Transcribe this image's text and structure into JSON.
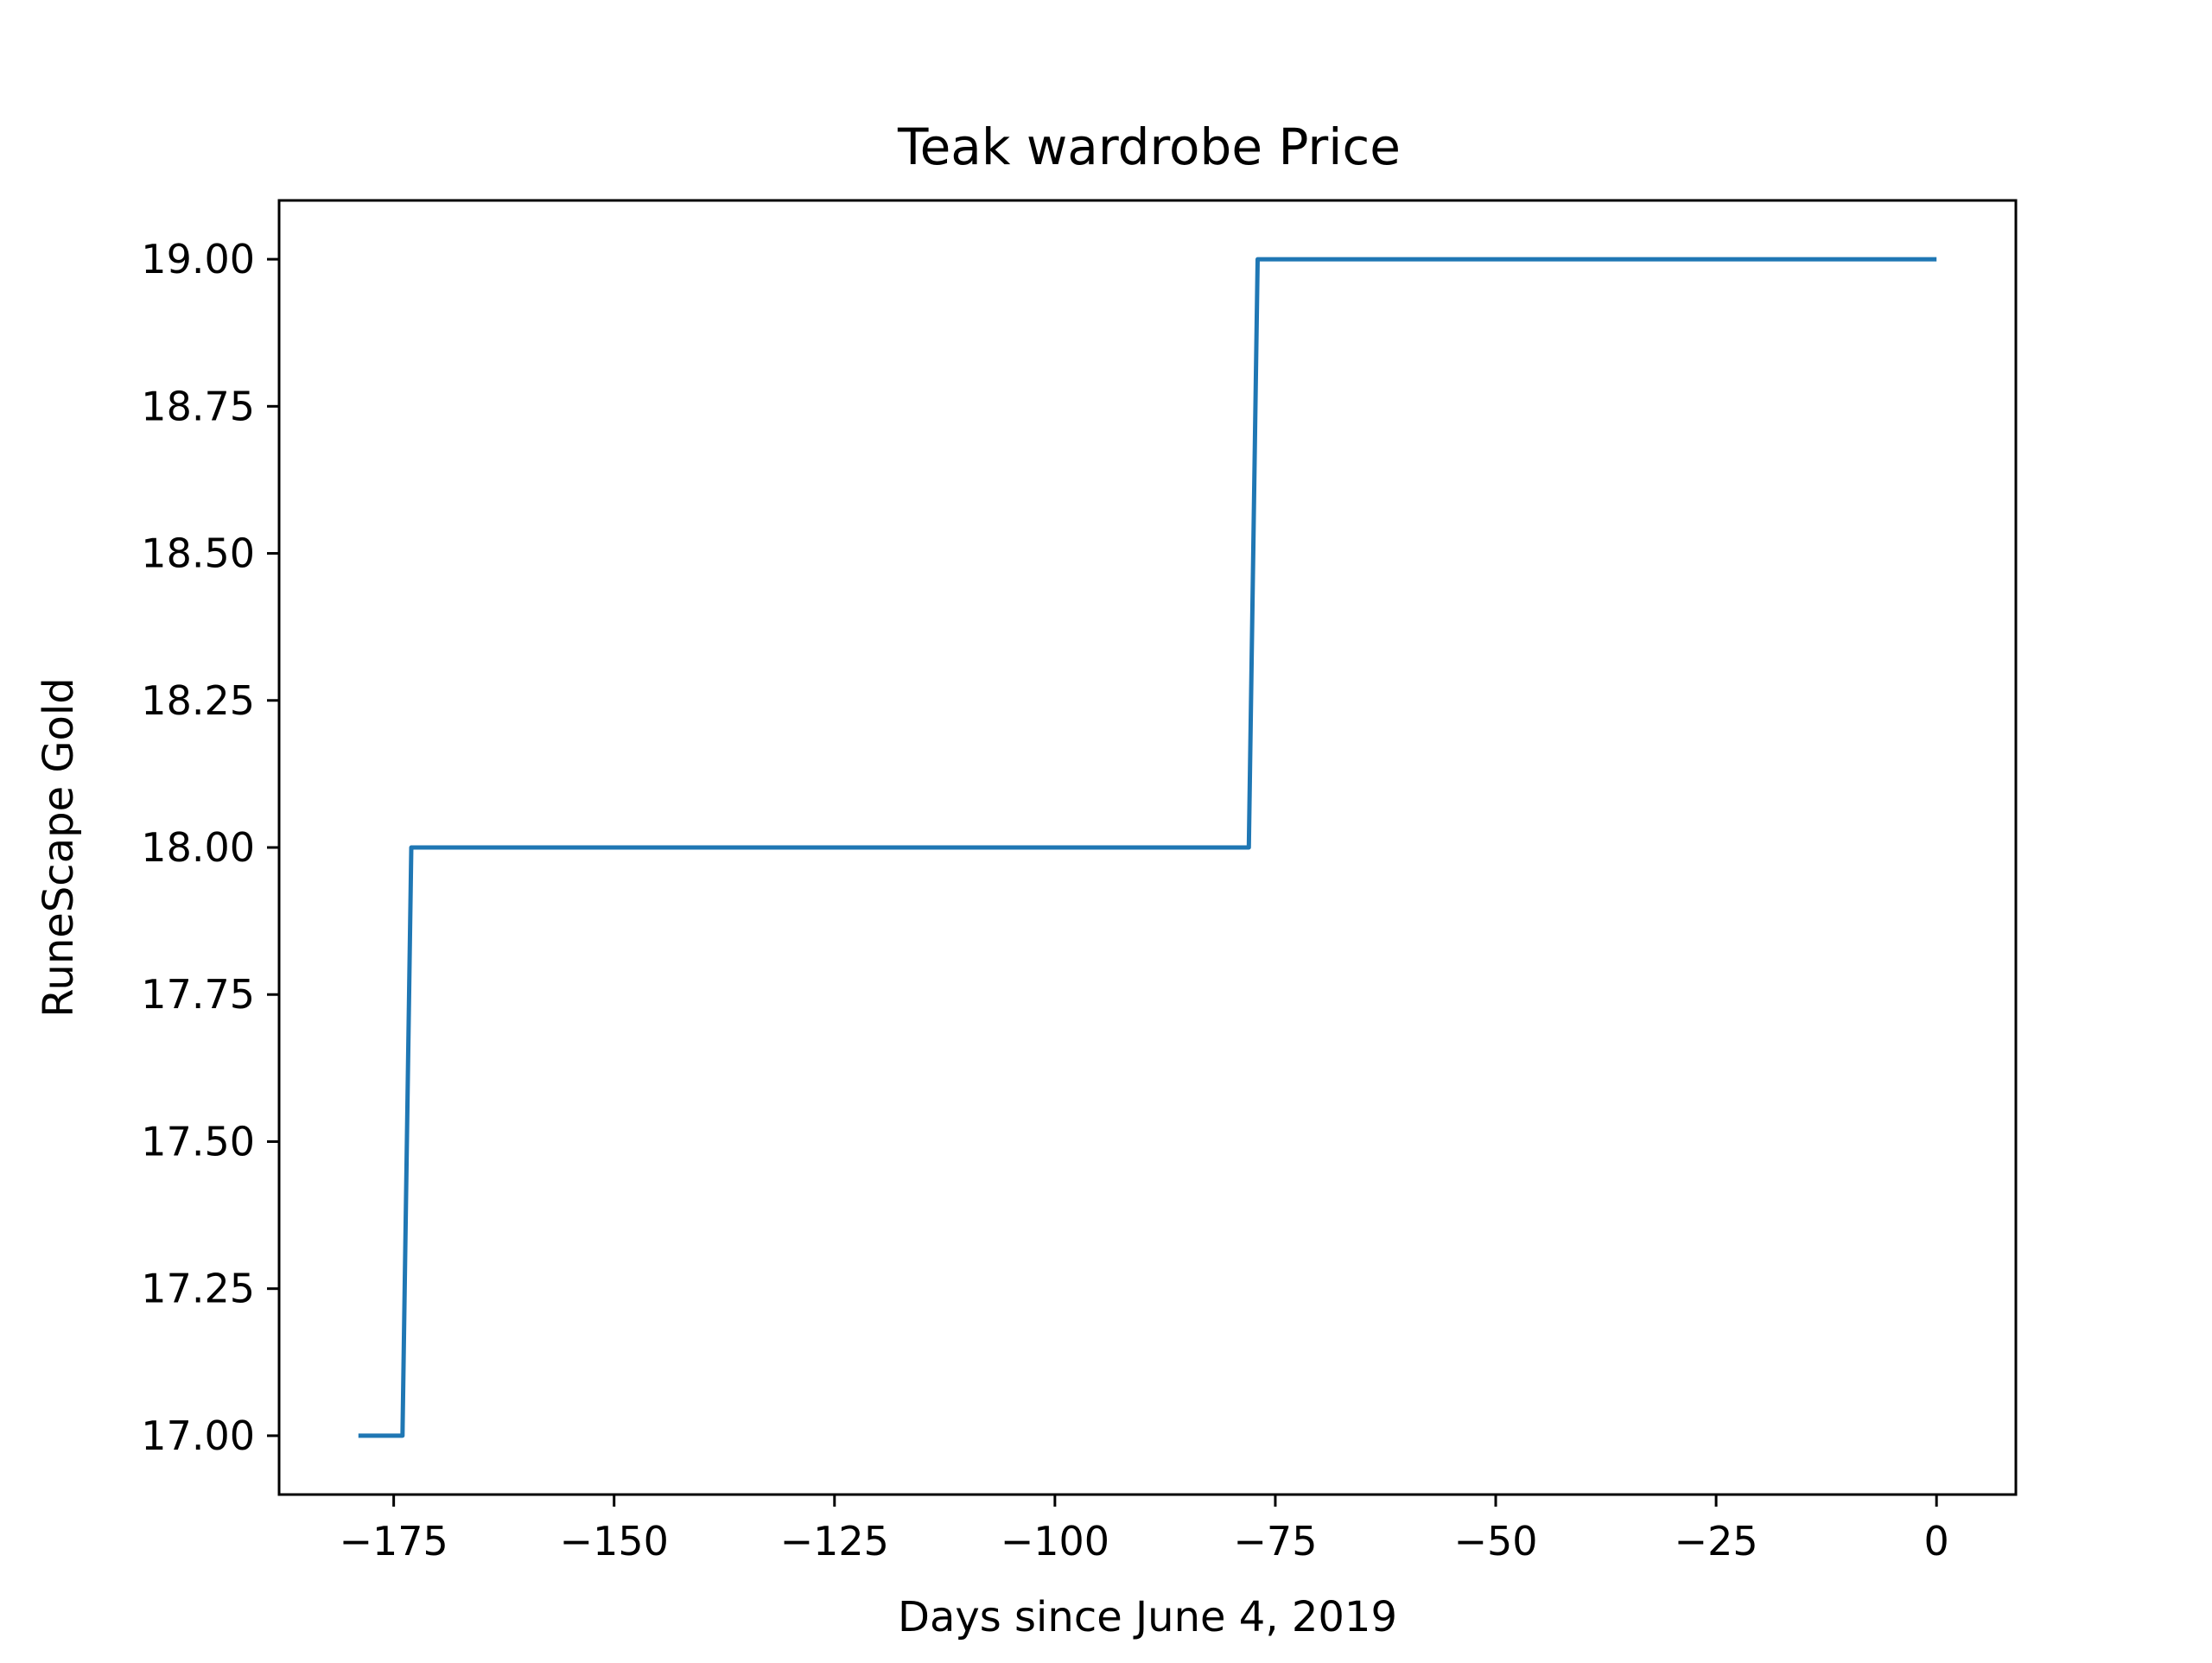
{
  "chart_data": {
    "type": "line",
    "title": "Teak wardrobe Price",
    "xlabel": "Days since June 4, 2019",
    "ylabel": "RuneScape Gold",
    "xlim": [
      -188,
      9
    ],
    "ylim": [
      16.9,
      19.1
    ],
    "xticks": [
      -175,
      -150,
      -125,
      -100,
      -75,
      -50,
      -25,
      0
    ],
    "xtick_labels": [
      "−175",
      "−150",
      "−125",
      "−100",
      "−75",
      "−50",
      "−25",
      "0"
    ],
    "yticks": [
      17.0,
      17.25,
      17.5,
      17.75,
      18.0,
      18.25,
      18.5,
      18.75,
      19.0
    ],
    "ytick_labels": [
      "17.00",
      "17.25",
      "17.50",
      "17.75",
      "18.00",
      "18.25",
      "18.50",
      "18.75",
      "19.00"
    ],
    "grid": false,
    "series": [
      {
        "color": "#1f77b4",
        "x": [
          -179,
          -174,
          -173,
          -78,
          -77,
          0
        ],
        "y": [
          17,
          17,
          18,
          18,
          19,
          19
        ]
      }
    ]
  }
}
